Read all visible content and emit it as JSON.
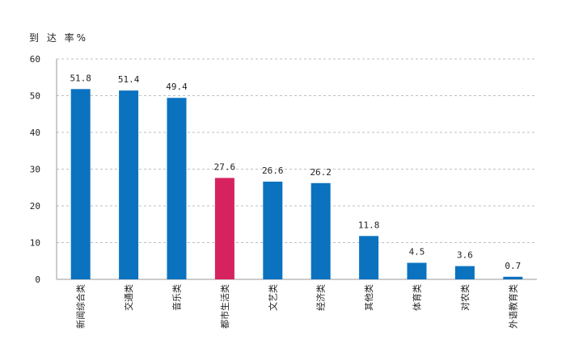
{
  "chart_data": {
    "type": "bar",
    "ylabel": "到 达 率%",
    "ylim": [
      0,
      60
    ],
    "yticks": [
      0,
      10,
      20,
      30,
      40,
      50,
      60
    ],
    "grid": true,
    "categories": [
      "新闻综合类",
      "交通类",
      "音乐类",
      "都市生活类",
      "文艺类",
      "经济类",
      "其他类",
      "体育类",
      "对农类",
      "外语教育类"
    ],
    "values": [
      51.8,
      51.4,
      49.4,
      27.6,
      26.6,
      26.2,
      11.8,
      4.5,
      3.6,
      0.7
    ],
    "value_labels": [
      "51.8",
      "51.4",
      "49.4",
      "27.6",
      "26.6",
      "26.2",
      "11.8",
      "4.5",
      "3.6",
      "0.7"
    ],
    "colors": {
      "default": "#0b72c0",
      "highlight": "#d6235f",
      "highlight_category": "都市生活类"
    }
  }
}
